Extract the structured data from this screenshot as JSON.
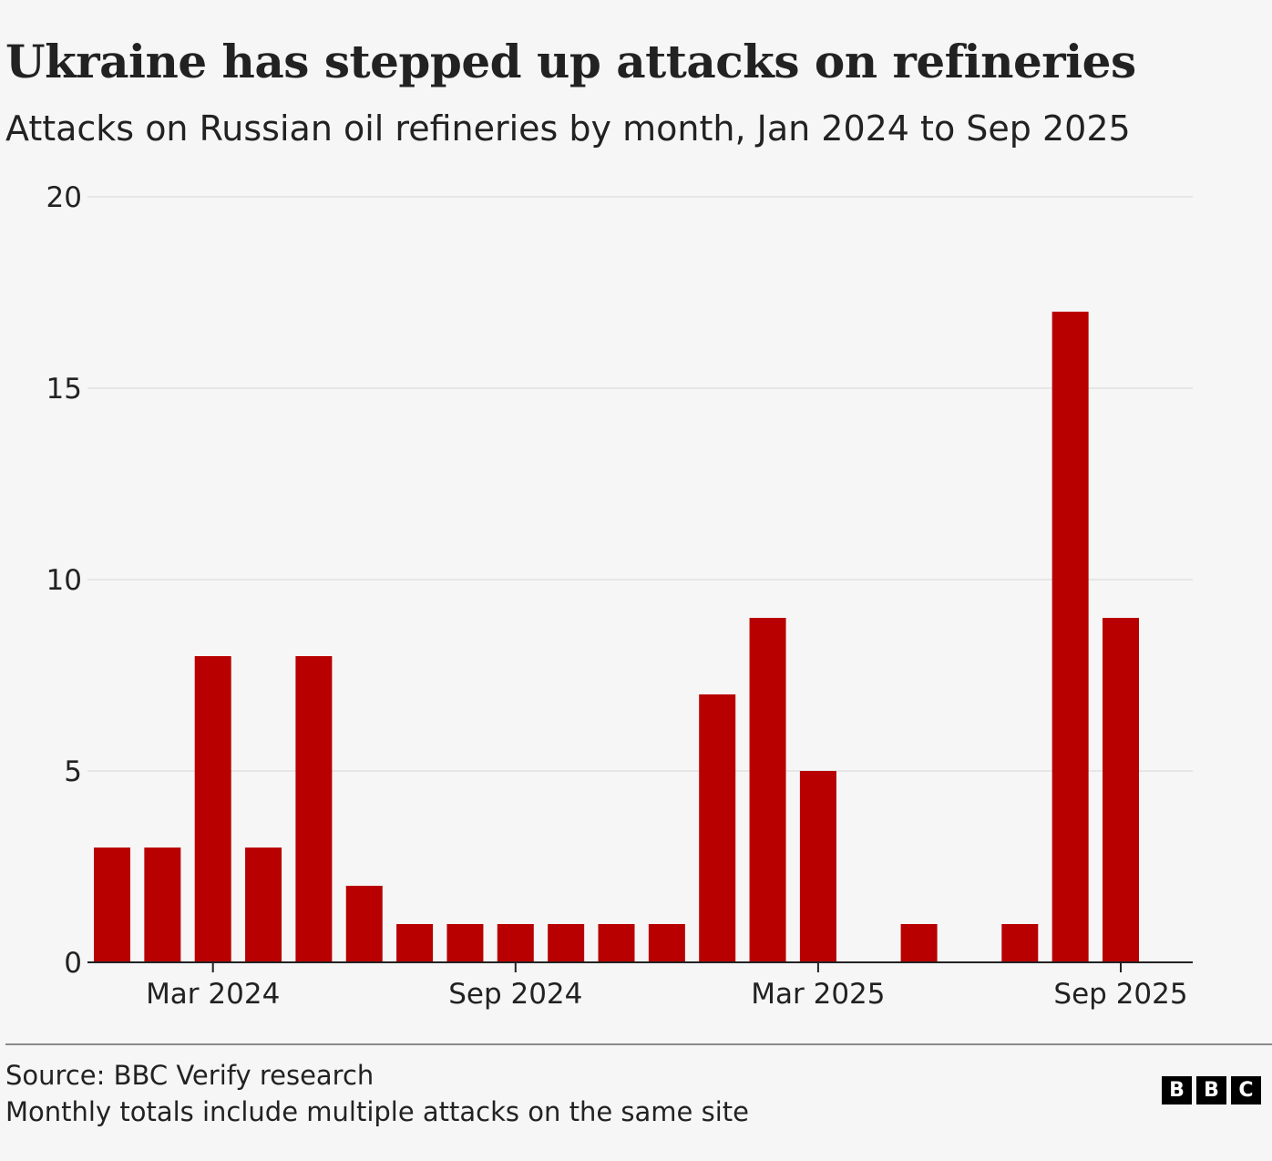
{
  "header": {
    "title": "Ukraine has stepped up attacks on refineries",
    "subtitle": "Attacks on Russian oil refineries by month, Jan 2024 to Sep 2025"
  },
  "footer": {
    "source": "Source: BBC Verify research",
    "note": "Monthly totals include multiple attacks on the same site",
    "logo_letters": [
      "B",
      "B",
      "C"
    ]
  },
  "colors": {
    "bar": "#b80000",
    "grid": "#e6e6e6",
    "axis": "#222222",
    "background": "#f6f6f6"
  },
  "chart_data": {
    "type": "bar",
    "title": "Ukraine has stepped up attacks on refineries",
    "subtitle": "Attacks on Russian oil refineries by month, Jan 2024 to Sep 2025",
    "xlabel": "",
    "ylabel": "",
    "categories": [
      "Jan 2024",
      "Feb 2024",
      "Mar 2024",
      "Apr 2024",
      "May 2024",
      "Jun 2024",
      "Jul 2024",
      "Aug 2024",
      "Sep 2024",
      "Oct 2024",
      "Nov 2024",
      "Dec 2024",
      "Jan 2025",
      "Feb 2025",
      "Mar 2025",
      "Apr 2025",
      "May 2025",
      "Jun 2025",
      "Jul 2025",
      "Aug 2025",
      "Sep 2025"
    ],
    "values": [
      3,
      3,
      8,
      3,
      8,
      2,
      1,
      1,
      1,
      1,
      1,
      1,
      7,
      9,
      5,
      0,
      1,
      0,
      1,
      17,
      9
    ],
    "ylim": [
      0,
      20
    ],
    "yticks": [
      0,
      5,
      10,
      15,
      20
    ],
    "xticks": [
      {
        "index": 2,
        "label": "Mar 2024"
      },
      {
        "index": 8,
        "label": "Sep 2024"
      },
      {
        "index": 14,
        "label": "Mar 2025"
      },
      {
        "index": 20,
        "label": "Sep 2025"
      }
    ],
    "grid": true,
    "legend": "none"
  }
}
